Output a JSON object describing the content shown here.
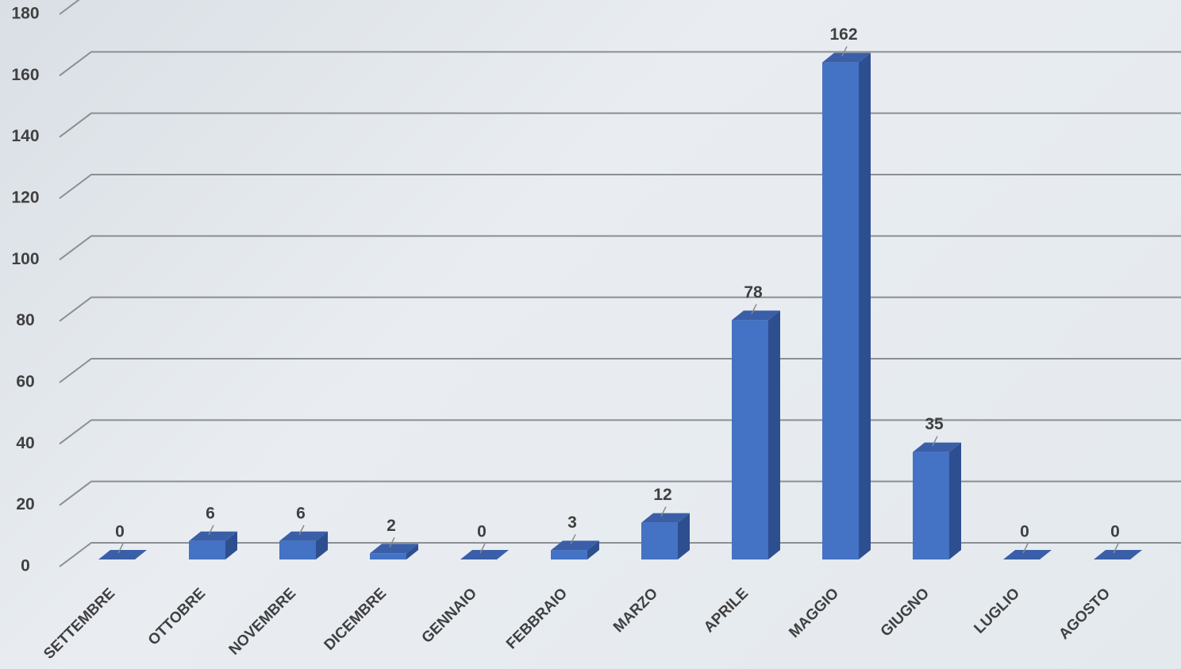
{
  "chart_data": {
    "type": "bar3d",
    "categories": [
      "SETTEMBRE",
      "OTTOBRE",
      "NOVEMBRE",
      "DICEMBRE",
      "GENNAIO",
      "FEBBRAIO",
      "MARZO",
      "APRILE",
      "MAGGIO",
      "GIUGNO",
      "LUGLIO",
      "AGOSTO"
    ],
    "values": [
      0,
      6,
      6,
      2,
      0,
      3,
      12,
      78,
      162,
      35,
      0,
      0
    ],
    "color": "#4472c4",
    "ylim": [
      0,
      180
    ],
    "yticks": [
      0,
      20,
      40,
      60,
      80,
      100,
      120,
      140,
      160,
      180
    ],
    "grid": true
  }
}
